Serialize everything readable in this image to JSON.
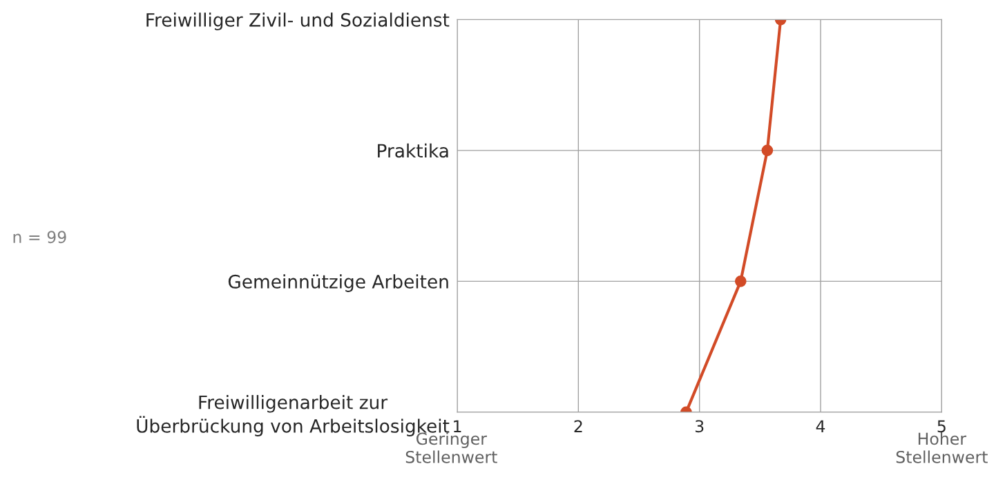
{
  "chart_data": {
    "type": "line",
    "orientation": "horizontal",
    "categories": [
      "Freiwilliger Zivil- und Sozialdienst",
      "Praktika",
      "Gemeinnützige Arbeiten",
      "Freiwilligenarbeit zur\nÜberbrückung von Arbeitslosigkeit"
    ],
    "series": [
      {
        "color": "#d24b27",
        "values": [
          3.67,
          3.56,
          3.34,
          2.89
        ]
      }
    ],
    "xlim": [
      1,
      5
    ],
    "xticks": [
      1,
      2,
      3,
      4,
      5
    ],
    "grid": true,
    "marker": "circle",
    "line_style": "solid",
    "legend": false,
    "annotations": [
      "n = 99",
      "Geringer\nStellenwert",
      "Hoher\nStellenwert"
    ]
  }
}
